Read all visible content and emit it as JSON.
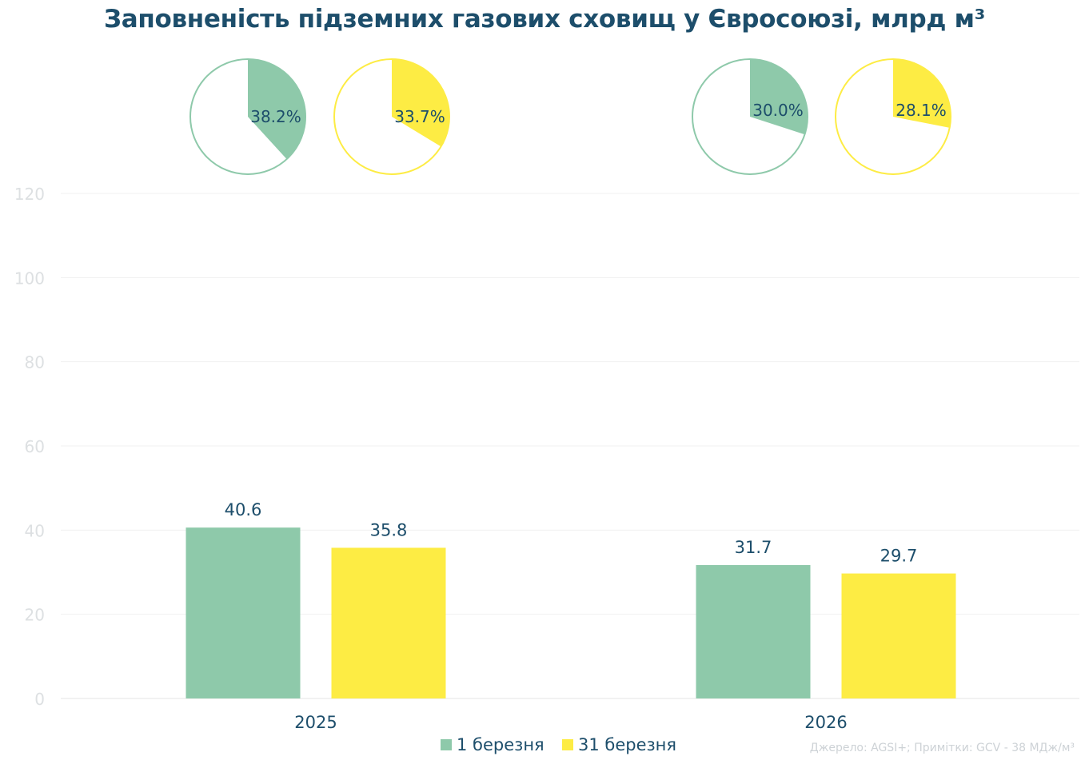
{
  "title": "Заповненість підземних газових сховищ у Євросоюзі, млрд м³",
  "source": "Джерело: AGSI+; Примітки: GCV - 38 МДж/м³",
  "colors": {
    "series1": "#8ec9aa",
    "series2": "#fdec44",
    "text": "#1d4e6b",
    "axis_tick": "#dde0e2",
    "grid": "#f0f0f0"
  },
  "chart_data": {
    "type": "bar",
    "categories": [
      "2025",
      "2026"
    ],
    "series": [
      {
        "name": "1 березня",
        "values": [
          40.6,
          31.7
        ],
        "labels": [
          "40.6",
          "31.7"
        ]
      },
      {
        "name": "31 березня",
        "values": [
          35.8,
          29.7
        ],
        "labels": [
          "35.8",
          "29.7"
        ]
      }
    ],
    "ylim": [
      0,
      120
    ],
    "yticks": [
      "0",
      "20",
      "40",
      "60",
      "80",
      "100",
      "120"
    ],
    "grid": true,
    "legend": "bottom-center",
    "pies": [
      {
        "category": "2025",
        "series": "1 березня",
        "value": 38.2,
        "label": "38.2%"
      },
      {
        "category": "2025",
        "series": "31 березня",
        "value": 33.7,
        "label": "33.7%"
      },
      {
        "category": "2026",
        "series": "1 березня",
        "value": 30.0,
        "label": "30.0%"
      },
      {
        "category": "2026",
        "series": "31 березня",
        "value": 28.1,
        "label": "28.1%"
      }
    ]
  }
}
